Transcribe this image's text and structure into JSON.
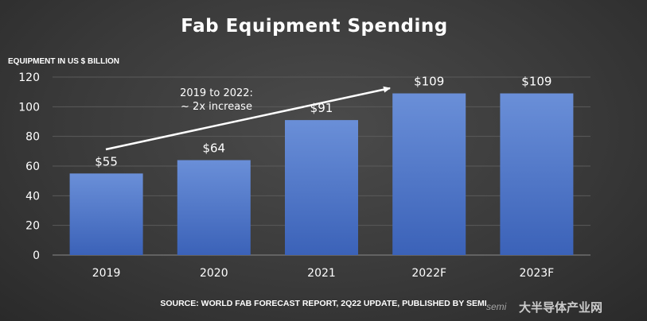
{
  "chart_data": {
    "type": "bar",
    "title": "Fab Equipment Spending",
    "ylabel": "EQUIPMENT IN US $ BILLION",
    "xlabel": "",
    "categories": [
      "2019",
      "2020",
      "2021",
      "2022F",
      "2023F"
    ],
    "values": [
      55,
      64,
      91,
      109,
      109
    ],
    "data_labels": [
      "$55",
      "$64",
      "$91",
      "$109",
      "$109"
    ],
    "ylim": [
      0,
      120
    ],
    "yticks": [
      0,
      20,
      40,
      60,
      80,
      100,
      120
    ],
    "grid": true,
    "bar_color": "#4a73c8",
    "annotation": {
      "line1": "2019 to 2022:",
      "line2": "~ 2x increase"
    }
  },
  "source": "SOURCE: WORLD FAB FORECAST REPORT, 2Q22 UPDATE, PUBLISHED BY SEMI",
  "watermark": {
    "semi": "semi",
    "site": "大半导体产业网"
  }
}
